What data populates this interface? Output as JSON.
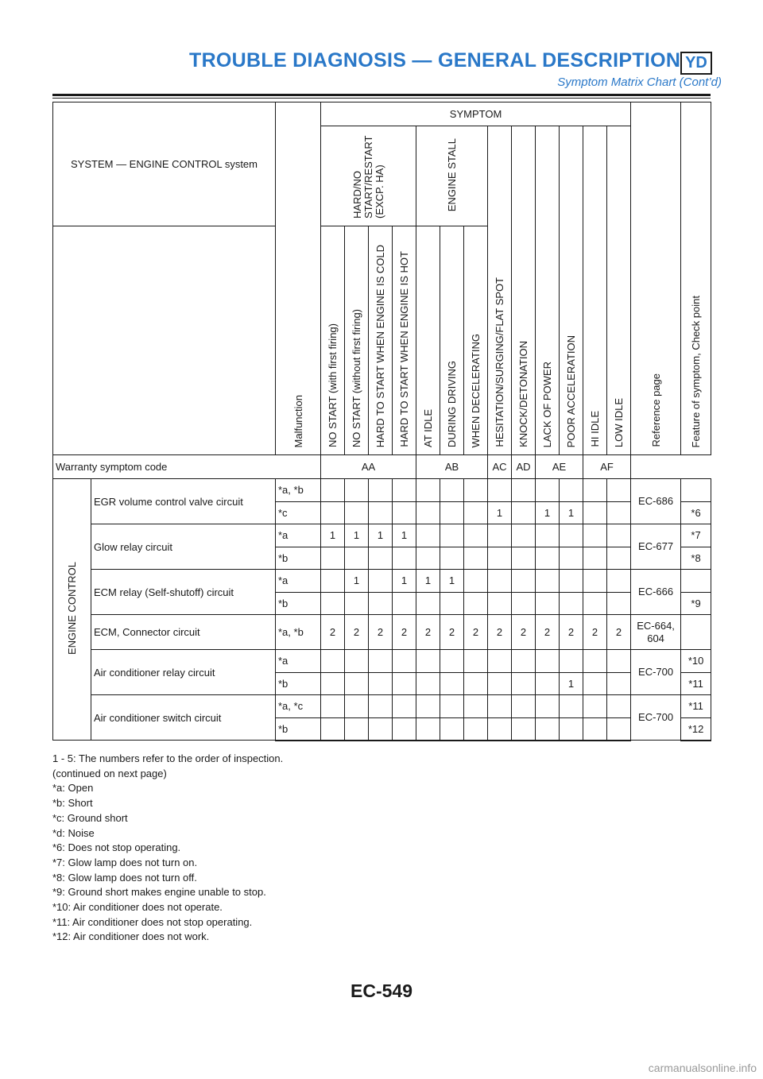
{
  "header": {
    "title": "TROUBLE DIAGNOSIS — GENERAL DESCRIPTION",
    "badge": "YD",
    "subtitle": "Symptom Matrix Chart (Cont’d)"
  },
  "table": {
    "system_label": "SYSTEM — ENGINE CONTROL system",
    "malfunction_label": "Malfunction",
    "symptom_label": "SYMPTOM",
    "group_hard_start": "HARD/NO START/RESTART (EXCP. HA)",
    "group_engine_stall": "ENGINE STALL",
    "columns": [
      "NO START (with first firing)",
      "NO START (without first firing)",
      "HARD TO START WHEN ENGINE IS COLD",
      "HARD TO START WHEN ENGINE IS HOT",
      "AT IDLE",
      "DURING DRIVING",
      "WHEN DECELERATING",
      "HESITATION/SURGING/FLAT SPOT",
      "KNOCK/DETONATION",
      "LACK OF POWER",
      "POOR ACCELERATION",
      "HI IDLE",
      "LOW IDLE"
    ],
    "reference_label": "Reference page",
    "feature_label": "Feature of symptom, Check point",
    "warranty_label": "Warranty symptom code",
    "warranty_codes": [
      "AA",
      "AB",
      "AC",
      "AD",
      "AE",
      "AF"
    ],
    "category": "ENGINE CONTROL",
    "items": [
      {
        "name": "EGR volume control valve circuit",
        "reference": "EC-686",
        "rows": [
          {
            "malfunction": "*a, *b",
            "cells": [
              "",
              "",
              "",
              "",
              "",
              "",
              "",
              "",
              "",
              "",
              "",
              "",
              ""
            ],
            "feature": ""
          },
          {
            "malfunction": "*c",
            "cells": [
              "",
              "",
              "",
              "",
              "",
              "",
              "",
              "1",
              "",
              "1",
              "1",
              "",
              ""
            ],
            "feature": "*6"
          }
        ]
      },
      {
        "name": "Glow relay circuit",
        "reference": "EC-677",
        "rows": [
          {
            "malfunction": "*a",
            "cells": [
              "1",
              "1",
              "1",
              "1",
              "",
              "",
              "",
              "",
              "",
              "",
              "",
              "",
              ""
            ],
            "feature": "*7"
          },
          {
            "malfunction": "*b",
            "cells": [
              "",
              "",
              "",
              "",
              "",
              "",
              "",
              "",
              "",
              "",
              "",
              "",
              ""
            ],
            "feature": "*8"
          }
        ]
      },
      {
        "name": "ECM relay (Self-shutoff) circuit",
        "reference": "EC-666",
        "rows": [
          {
            "malfunction": "*a",
            "cells": [
              "",
              "1",
              "",
              "1",
              "1",
              "1",
              "",
              "",
              "",
              "",
              "",
              "",
              ""
            ],
            "feature": ""
          },
          {
            "malfunction": "*b",
            "cells": [
              "",
              "",
              "",
              "",
              "",
              "",
              "",
              "",
              "",
              "",
              "",
              "",
              ""
            ],
            "feature": "*9"
          }
        ]
      },
      {
        "name": "ECM, Connector circuit",
        "reference": "EC-664, 604",
        "rows": [
          {
            "malfunction": "*a, *b",
            "cells": [
              "2",
              "2",
              "2",
              "2",
              "2",
              "2",
              "2",
              "2",
              "2",
              "2",
              "2",
              "2",
              "2"
            ],
            "feature": ""
          }
        ]
      },
      {
        "name": "Air conditioner relay circuit",
        "reference": "EC-700",
        "rows": [
          {
            "malfunction": "*a",
            "cells": [
              "",
              "",
              "",
              "",
              "",
              "",
              "",
              "",
              "",
              "",
              "",
              "",
              ""
            ],
            "feature": "*10"
          },
          {
            "malfunction": "*b",
            "cells": [
              "",
              "",
              "",
              "",
              "",
              "",
              "",
              "",
              "",
              "",
              "1",
              "",
              ""
            ],
            "feature": "*11"
          }
        ]
      },
      {
        "name": "Air conditioner switch circuit",
        "reference": "EC-700",
        "rows": [
          {
            "malfunction": "*a, *c",
            "cells": [
              "",
              "",
              "",
              "",
              "",
              "",
              "",
              "",
              "",
              "",
              "",
              "",
              ""
            ],
            "feature": "*11"
          },
          {
            "malfunction": "*b",
            "cells": [
              "",
              "",
              "",
              "",
              "",
              "",
              "",
              "",
              "",
              "",
              "",
              "",
              ""
            ],
            "feature": "*12"
          }
        ]
      }
    ]
  },
  "notes": [
    "1 - 5: The numbers refer to the order of inspection.",
    "(continued on next page)",
    "*a: Open",
    "*b: Short",
    "*c: Ground short",
    "*d: Noise",
    "*6: Does not stop operating.",
    "*7: Glow lamp does not turn on.",
    "*8: Glow lamp does not turn off.",
    "*9: Ground short makes engine unable to stop.",
    "*10: Air conditioner does not operate.",
    "*11: Air conditioner does not stop operating.",
    "*12: Air conditioner does not work."
  ],
  "footer": {
    "page_number": "EC-549"
  },
  "watermark": "carmanualsonline.info"
}
